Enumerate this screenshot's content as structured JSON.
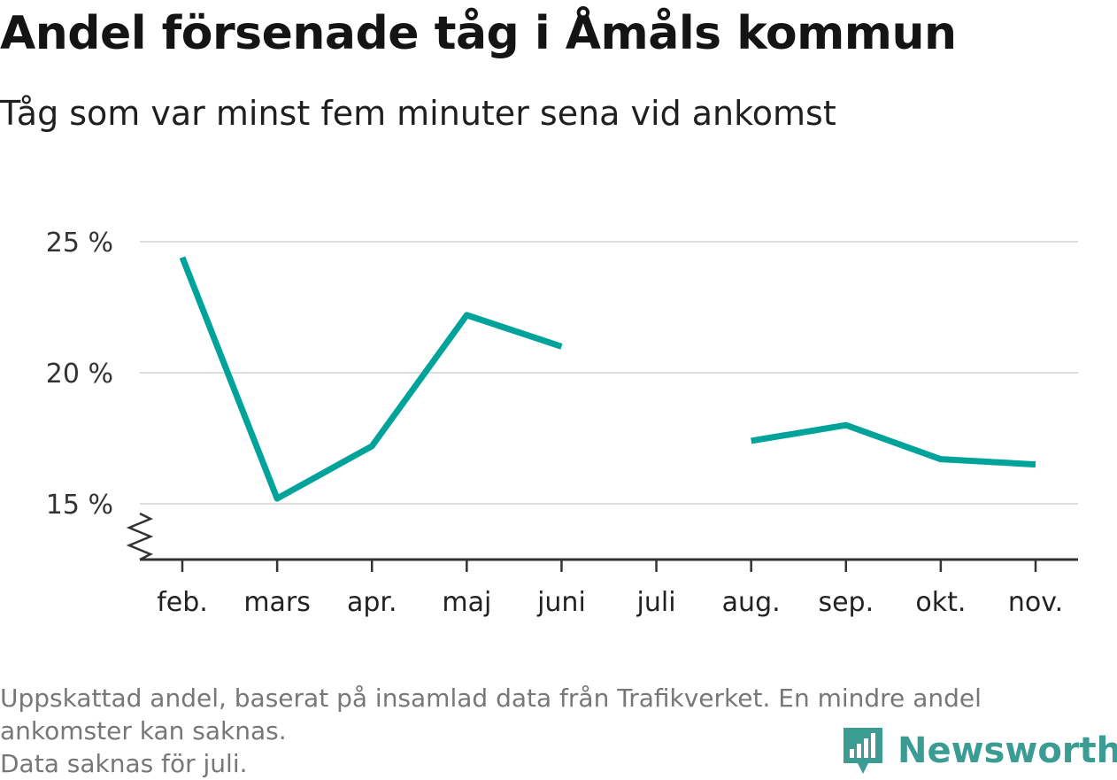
{
  "title": "Andel försenade tåg i Åmåls kommun",
  "subtitle": "Tåg som var minst fem minuter sena vid ankomst",
  "footnote": {
    "line1": "Uppskattad andel, baserat på insamlad data från Trafikverket. En mindre andel ankomster kan saknas.",
    "line2": "Data saknas för juli."
  },
  "brand": {
    "name": "Newsworthy",
    "icon": "bar-chart-speech-bubble-icon",
    "color": "#3a9c92"
  },
  "chart_data": {
    "type": "line",
    "categories": [
      "feb.",
      "mars",
      "apr.",
      "maj",
      "juni",
      "juli",
      "aug.",
      "sep.",
      "okt.",
      "nov."
    ],
    "series": [
      {
        "color": "#00a39a",
        "values": [
          24.4,
          15.2,
          17.2,
          22.2,
          21.0,
          null,
          17.4,
          18.0,
          16.7,
          16.5
        ]
      }
    ],
    "yticks": [
      15,
      20,
      25
    ],
    "ytick_labels": [
      "15 %",
      "20 %",
      "25 %"
    ],
    "ylim": [
      13,
      25
    ],
    "y_axis_break": true,
    "grid": true,
    "xlabel": "",
    "ylabel": ""
  }
}
